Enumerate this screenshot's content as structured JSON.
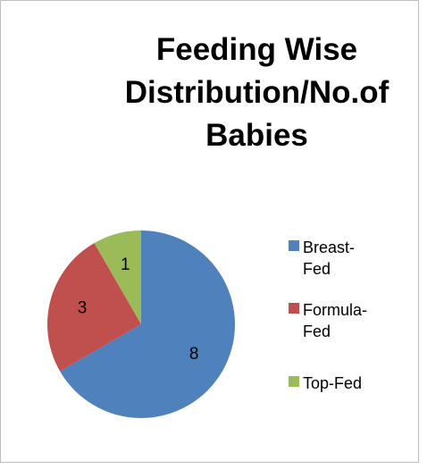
{
  "chart_data": {
    "type": "pie",
    "title": "Feeding Wise Distribution/No.of Babies",
    "categories": [
      "Breast-Fed",
      "Formula-Fed",
      "Top-Fed"
    ],
    "values": [
      8,
      3,
      1
    ],
    "colors": [
      "#4f81bd",
      "#c0504d",
      "#9bbb59"
    ],
    "legend": "right"
  }
}
